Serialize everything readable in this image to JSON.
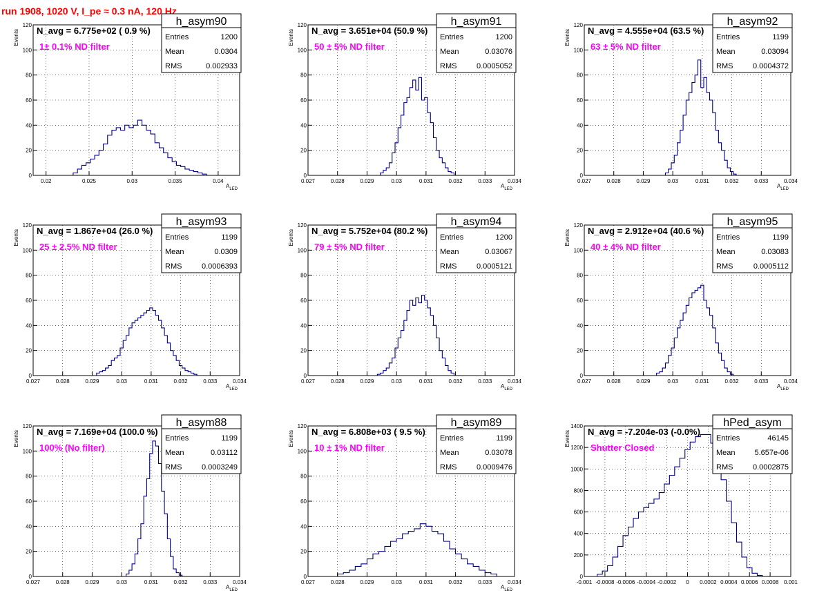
{
  "run_title": "run 1908,  1020 V, I_pe ≈ 0.3 nA, 120 Hz",
  "colors": {
    "run_title": "#ff0000",
    "annotation": "#ff00ff",
    "hist_line": "#000080",
    "frame": "#000000",
    "grid": "#000000"
  },
  "chart_data": [
    {
      "type": "bar",
      "name": "h_asym90",
      "ylabel": "Events",
      "xlabel": "A_LED",
      "xlim": [
        0.0185,
        0.0425
      ],
      "ylim": [
        0,
        120
      ],
      "xticks": [
        "0.02",
        "0.025",
        "0.03",
        "0.035",
        "0.04"
      ],
      "xtick_values": [
        0.02,
        0.025,
        0.03,
        0.035,
        0.04
      ],
      "yticks": [
        0,
        20,
        40,
        60,
        80,
        100,
        120
      ],
      "grid": true,
      "annotation_main": "N_avg = 6.775e+02 ( 0.9 %)",
      "annotation_filter": "1± 0.1% ND filter",
      "stats": [
        {
          "label": "Entries",
          "value": "1200"
        },
        {
          "label": "Mean",
          "value": "0.0304"
        },
        {
          "label": "RMS",
          "value": "0.002933"
        }
      ],
      "x": [
        0.0234,
        0.0239,
        0.0244,
        0.0249,
        0.0254,
        0.0259,
        0.0264,
        0.0269,
        0.0274,
        0.0279,
        0.0284,
        0.0289,
        0.0294,
        0.0299,
        0.0304,
        0.0309,
        0.0314,
        0.0319,
        0.0324,
        0.0329,
        0.0334,
        0.0339,
        0.0344,
        0.0349,
        0.0354,
        0.0359,
        0.0364,
        0.0369,
        0.0374,
        0.0379,
        0.0384
      ],
      "values": [
        2,
        5,
        8,
        10,
        13,
        16,
        20,
        25,
        32,
        36,
        38,
        36,
        40,
        38,
        40,
        44,
        40,
        36,
        33,
        26,
        22,
        18,
        14,
        11,
        8,
        7,
        5,
        4,
        3,
        2,
        1
      ]
    },
    {
      "type": "bar",
      "name": "h_asym91",
      "ylabel": "Events",
      "xlabel": "A_LED",
      "xlim": [
        0.027,
        0.034
      ],
      "ylim": [
        0,
        120
      ],
      "xticks": [
        "0.027",
        "0.028",
        "0.029",
        "0.03",
        "0.031",
        "0.032",
        "0.033",
        "0.034"
      ],
      "xtick_values": [
        0.027,
        0.028,
        0.029,
        0.03,
        0.031,
        0.032,
        0.033,
        0.034
      ],
      "yticks": [
        0,
        20,
        40,
        60,
        80,
        100,
        120
      ],
      "grid": true,
      "annotation_main": "N_avg = 3.651e+04 (50.9 %)",
      "annotation_filter": "50 ± 5% ND filter",
      "stats": [
        {
          "label": "Entries",
          "value": "1200"
        },
        {
          "label": "Mean",
          "value": "0.03076"
        },
        {
          "label": "RMS",
          "value": "0.0005052"
        }
      ],
      "x": [
        0.0295,
        0.0296,
        0.0297,
        0.0298,
        0.0299,
        0.03,
        0.0301,
        0.0302,
        0.0303,
        0.0304,
        0.0305,
        0.0306,
        0.0307,
        0.0308,
        0.0309,
        0.031,
        0.0311,
        0.0312,
        0.0313,
        0.0314,
        0.0315,
        0.0316,
        0.0317,
        0.0318,
        0.0319
      ],
      "values": [
        2,
        4,
        6,
        10,
        18,
        26,
        38,
        48,
        58,
        62,
        70,
        76,
        68,
        78,
        60,
        62,
        50,
        42,
        30,
        20,
        14,
        10,
        6,
        3,
        2
      ]
    },
    {
      "type": "bar",
      "name": "h_asym92",
      "ylabel": "Events",
      "xlabel": "A_LED",
      "xlim": [
        0.027,
        0.034
      ],
      "ylim": [
        0,
        120
      ],
      "xticks": [
        "0.027",
        "0.028",
        "0.029",
        "0.03",
        "0.031",
        "0.032",
        "0.033",
        "0.034"
      ],
      "xtick_values": [
        0.027,
        0.028,
        0.029,
        0.03,
        0.031,
        0.032,
        0.033,
        0.034
      ],
      "yticks": [
        0,
        20,
        40,
        60,
        80,
        100,
        120
      ],
      "grid": true,
      "annotation_main": "N_avg = 4.555e+04 (63.5 %)",
      "annotation_filter": "63 ± 5% ND filter",
      "stats": [
        {
          "label": "Entries",
          "value": "1199"
        },
        {
          "label": "Mean",
          "value": "0.03094"
        },
        {
          "label": "RMS",
          "value": "0.0004372"
        }
      ],
      "x": [
        0.0298,
        0.0299,
        0.03,
        0.0301,
        0.0302,
        0.0303,
        0.0304,
        0.0305,
        0.0306,
        0.0307,
        0.0308,
        0.0309,
        0.031,
        0.0311,
        0.0312,
        0.0313,
        0.0314,
        0.0315,
        0.0316,
        0.0317,
        0.0318,
        0.0319,
        0.032,
        0.0321
      ],
      "values": [
        2,
        5,
        10,
        16,
        26,
        36,
        48,
        60,
        66,
        74,
        80,
        92,
        70,
        78,
        66,
        60,
        50,
        36,
        26,
        20,
        12,
        6,
        3,
        1
      ]
    },
    {
      "type": "bar",
      "name": "h_asym93",
      "ylabel": "Events",
      "xlabel": "A_LED",
      "xlim": [
        0.027,
        0.034
      ],
      "ylim": [
        0,
        120
      ],
      "xticks": [
        "0.027",
        "0.028",
        "0.029",
        "0.03",
        "0.031",
        "0.032",
        "0.033",
        "0.034"
      ],
      "xtick_values": [
        0.027,
        0.028,
        0.029,
        0.03,
        0.031,
        0.032,
        0.033,
        0.034
      ],
      "yticks": [
        0,
        20,
        40,
        60,
        80,
        100,
        120
      ],
      "grid": true,
      "annotation_main": "N_avg = 1.867e+04 (26.0 %)",
      "annotation_filter": "25 ± 2.5% ND filter",
      "stats": [
        {
          "label": "Entries",
          "value": "1199"
        },
        {
          "label": "Mean",
          "value": "0.0309"
        },
        {
          "label": "RMS",
          "value": "0.0006393"
        }
      ],
      "x": [
        0.0292,
        0.0293,
        0.0294,
        0.0295,
        0.0296,
        0.0297,
        0.0298,
        0.0299,
        0.03,
        0.0301,
        0.0302,
        0.0303,
        0.0304,
        0.0305,
        0.0306,
        0.0307,
        0.0308,
        0.0309,
        0.031,
        0.0311,
        0.0312,
        0.0313,
        0.0314,
        0.0315,
        0.0316,
        0.0317,
        0.0318,
        0.0319,
        0.032,
        0.0321,
        0.0322,
        0.0323,
        0.0324,
        0.0325
      ],
      "values": [
        2,
        3,
        4,
        6,
        8,
        12,
        14,
        16,
        22,
        28,
        32,
        38,
        42,
        44,
        46,
        48,
        50,
        52,
        54,
        52,
        48,
        44,
        38,
        32,
        26,
        20,
        16,
        12,
        8,
        6,
        4,
        3,
        2,
        1
      ]
    },
    {
      "type": "bar",
      "name": "h_asym94",
      "ylabel": "Events",
      "xlabel": "A_LED",
      "xlim": [
        0.027,
        0.034
      ],
      "ylim": [
        0,
        120
      ],
      "xticks": [
        "0.027",
        "0.028",
        "0.029",
        "0.03",
        "0.031",
        "0.032",
        "0.033",
        "0.034"
      ],
      "xtick_values": [
        0.027,
        0.028,
        0.029,
        0.03,
        0.031,
        0.032,
        0.033,
        0.034
      ],
      "yticks": [
        0,
        20,
        40,
        60,
        80,
        100,
        120
      ],
      "grid": true,
      "annotation_main": "N_avg = 5.752e+04 (80.2 %)",
      "annotation_filter": "79 ± 5% ND filter",
      "stats": [
        {
          "label": "Entries",
          "value": "1200"
        },
        {
          "label": "Mean",
          "value": "0.03067"
        },
        {
          "label": "RMS",
          "value": "0.0005121"
        }
      ],
      "x": [
        0.0294,
        0.0295,
        0.0296,
        0.0297,
        0.0298,
        0.0299,
        0.03,
        0.0301,
        0.0302,
        0.0303,
        0.0304,
        0.0305,
        0.0306,
        0.0307,
        0.0308,
        0.0309,
        0.031,
        0.0311,
        0.0312,
        0.0313,
        0.0314,
        0.0315,
        0.0316,
        0.0317,
        0.0318,
        0.0319
      ],
      "values": [
        1,
        2,
        4,
        6,
        10,
        14,
        22,
        30,
        36,
        44,
        52,
        60,
        56,
        62,
        58,
        64,
        60,
        54,
        48,
        40,
        30,
        20,
        14,
        8,
        4,
        2
      ]
    },
    {
      "type": "bar",
      "name": "h_asym95",
      "ylabel": "Events",
      "xlabel": "A_LED",
      "xlim": [
        0.027,
        0.034
      ],
      "ylim": [
        0,
        120
      ],
      "xticks": [
        "0.027",
        "0.028",
        "0.029",
        "0.03",
        "0.031",
        "0.032",
        "0.033",
        "0.034"
      ],
      "xtick_values": [
        0.027,
        0.028,
        0.029,
        0.03,
        0.031,
        0.032,
        0.033,
        0.034
      ],
      "yticks": [
        0,
        20,
        40,
        60,
        80,
        100,
        120
      ],
      "grid": true,
      "annotation_main": "N_avg = 2.912e+04 (40.6 %)",
      "annotation_filter": "40 ± 4% ND filter",
      "stats": [
        {
          "label": "Entries",
          "value": "1199"
        },
        {
          "label": "Mean",
          "value": "0.03083"
        },
        {
          "label": "RMS",
          "value": "0.0005112"
        }
      ],
      "x": [
        0.0295,
        0.0296,
        0.0297,
        0.0298,
        0.0299,
        0.03,
        0.0301,
        0.0302,
        0.0303,
        0.0304,
        0.0305,
        0.0306,
        0.0307,
        0.0308,
        0.0309,
        0.031,
        0.0311,
        0.0312,
        0.0313,
        0.0314,
        0.0315,
        0.0316,
        0.0317,
        0.0318,
        0.0319,
        0.032
      ],
      "values": [
        2,
        3,
        6,
        10,
        16,
        22,
        30,
        38,
        44,
        50,
        56,
        62,
        66,
        68,
        70,
        72,
        60,
        54,
        48,
        38,
        26,
        18,
        12,
        6,
        3,
        1
      ]
    },
    {
      "type": "bar",
      "name": "h_asym88",
      "ylabel": "Events",
      "xlabel": "A_LED",
      "xlim": [
        0.027,
        0.034
      ],
      "ylim": [
        0,
        120
      ],
      "xticks": [
        "0.027",
        "0.028",
        "0.029",
        "0.03",
        "0.031",
        "0.032",
        "0.033",
        "0.034"
      ],
      "xtick_values": [
        0.027,
        0.028,
        0.029,
        0.03,
        0.031,
        0.032,
        0.033,
        0.034
      ],
      "yticks": [
        0,
        20,
        40,
        60,
        80,
        100,
        120
      ],
      "grid": true,
      "annotation_main": "N_avg = 7.169e+04 (100.0 %)",
      "annotation_filter": "100% (No filter)",
      "stats": [
        {
          "label": "Entries",
          "value": "1199"
        },
        {
          "label": "Mean",
          "value": "0.03112"
        },
        {
          "label": "RMS",
          "value": "0.0003249"
        }
      ],
      "x": [
        0.0302,
        0.0303,
        0.0304,
        0.0305,
        0.0306,
        0.0307,
        0.0308,
        0.0309,
        0.031,
        0.0311,
        0.0312,
        0.0313,
        0.0314,
        0.0315,
        0.0316,
        0.0317,
        0.0318,
        0.0319,
        0.032
      ],
      "values": [
        2,
        5,
        10,
        18,
        30,
        42,
        64,
        78,
        98,
        108,
        104,
        90,
        68,
        50,
        30,
        16,
        6,
        3,
        1
      ]
    },
    {
      "type": "bar",
      "name": "h_asym89",
      "ylabel": "Events",
      "xlabel": "A_LED",
      "xlim": [
        0.027,
        0.034
      ],
      "ylim": [
        0,
        120
      ],
      "xticks": [
        "0.027",
        "0.028",
        "0.029",
        "0.03",
        "0.031",
        "0.032",
        "0.033",
        "0.034"
      ],
      "xtick_values": [
        0.027,
        0.028,
        0.029,
        0.03,
        0.031,
        0.032,
        0.033,
        0.034
      ],
      "yticks": [
        0,
        20,
        40,
        60,
        80,
        100,
        120
      ],
      "grid": true,
      "annotation_main": "N_avg = 6.808e+03 ( 9.5 %)",
      "annotation_filter": "10 ± 1% ND filter",
      "stats": [
        {
          "label": "Entries",
          "value": "1199"
        },
        {
          "label": "Mean",
          "value": "0.03078"
        },
        {
          "label": "RMS",
          "value": "0.0009476"
        }
      ],
      "x": [
        0.0281,
        0.0283,
        0.0285,
        0.0287,
        0.0289,
        0.0291,
        0.0293,
        0.0295,
        0.0297,
        0.0299,
        0.0301,
        0.0303,
        0.0305,
        0.0307,
        0.0309,
        0.0311,
        0.0313,
        0.0315,
        0.0317,
        0.0319,
        0.0321,
        0.0323,
        0.0325,
        0.0327,
        0.0329,
        0.0331,
        0.0333
      ],
      "values": [
        2,
        3,
        5,
        8,
        10,
        14,
        18,
        20,
        24,
        28,
        30,
        34,
        36,
        38,
        42,
        40,
        36,
        34,
        28,
        22,
        18,
        14,
        10,
        8,
        5,
        3,
        2
      ]
    },
    {
      "type": "bar",
      "name": "hPed_asym",
      "ylabel": "Events",
      "xlabel": "",
      "xlim": [
        -0.001,
        0.001
      ],
      "ylim": [
        0,
        1400
      ],
      "xticks": [
        "-0.001",
        "-0.0008",
        "-0.0006",
        "-0.0004",
        "-0.0002",
        "0",
        "0.0002",
        "0.0004",
        "0.0006",
        "0.0008",
        "0.001"
      ],
      "xtick_values": [
        -0.001,
        -0.0008,
        -0.0006,
        -0.0004,
        -0.0002,
        0,
        0.0002,
        0.0004,
        0.0006,
        0.0008,
        0.001
      ],
      "yticks": [
        0,
        200,
        400,
        600,
        800,
        1000,
        1200,
        1400
      ],
      "grid": true,
      "annotation_main": "N_avg = -7.204e-03 (-0.0%)",
      "annotation_filter": "Shutter Closed",
      "stats": [
        {
          "label": "Entries",
          "value": "46145"
        },
        {
          "label": "Mean",
          "value": "5.657e-06"
        },
        {
          "label": "RMS",
          "value": "0.0002875"
        }
      ],
      "x": [
        -0.00085,
        -0.0008,
        -0.00075,
        -0.0007,
        -0.00065,
        -0.0006,
        -0.00055,
        -0.0005,
        -0.00045,
        -0.0004,
        -0.00035,
        -0.0003,
        -0.00025,
        -0.0002,
        -0.00015,
        -0.0001,
        -5e-05,
        0,
        5e-05,
        0.0001,
        0.00015,
        0.0002,
        0.00025,
        0.0003,
        0.00035,
        0.0004,
        0.00045,
        0.0005,
        0.00055,
        0.0006,
        0.00065,
        0.0007
      ],
      "values": [
        20,
        50,
        100,
        180,
        280,
        380,
        460,
        540,
        600,
        640,
        680,
        720,
        780,
        860,
        940,
        1020,
        1100,
        1180,
        1250,
        1300,
        1320,
        1320,
        1240,
        1100,
        900,
        700,
        500,
        320,
        180,
        80,
        30,
        10
      ]
    }
  ]
}
